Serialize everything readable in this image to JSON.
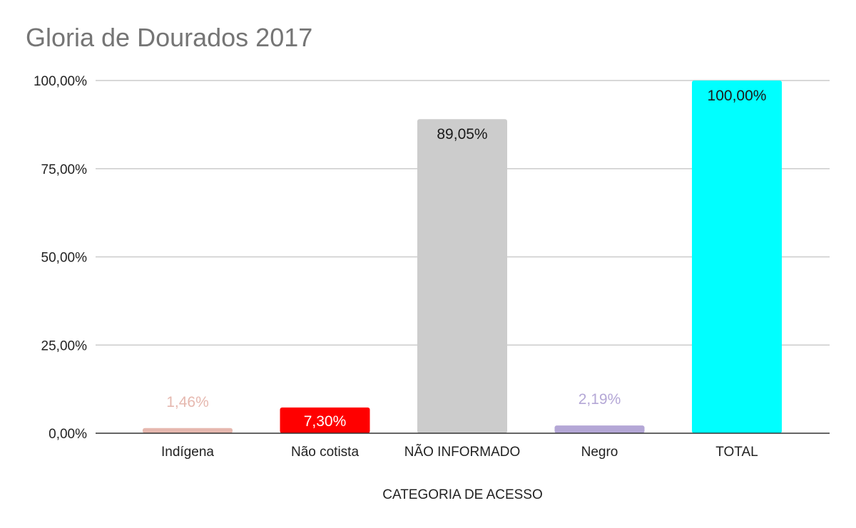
{
  "chart_data": {
    "type": "bar",
    "title": "Gloria de Dourados 2017",
    "xlabel": "CATEGORIA DE ACESSO",
    "ylabel": "",
    "categories": [
      "Indígena",
      "Não cotista",
      "NÃO INFORMADO",
      "Negro",
      "TOTAL"
    ],
    "values": [
      1.46,
      7.3,
      89.05,
      2.19,
      100.0
    ],
    "value_labels": [
      "1,46%",
      "7,30%",
      "89,05%",
      "2,19%",
      "100,00%"
    ],
    "bar_colors": [
      "#e6b8af",
      "#ff0000",
      "#cccccc",
      "#b4a7d6",
      "#00ffff"
    ],
    "ylim": [
      0,
      100
    ],
    "yticks": [
      0,
      25,
      50,
      75,
      100
    ],
    "ytick_labels": [
      "0,00%",
      "25,00%",
      "50,00%",
      "75,00%",
      "100,00%"
    ],
    "grid": true,
    "legend": "none"
  }
}
